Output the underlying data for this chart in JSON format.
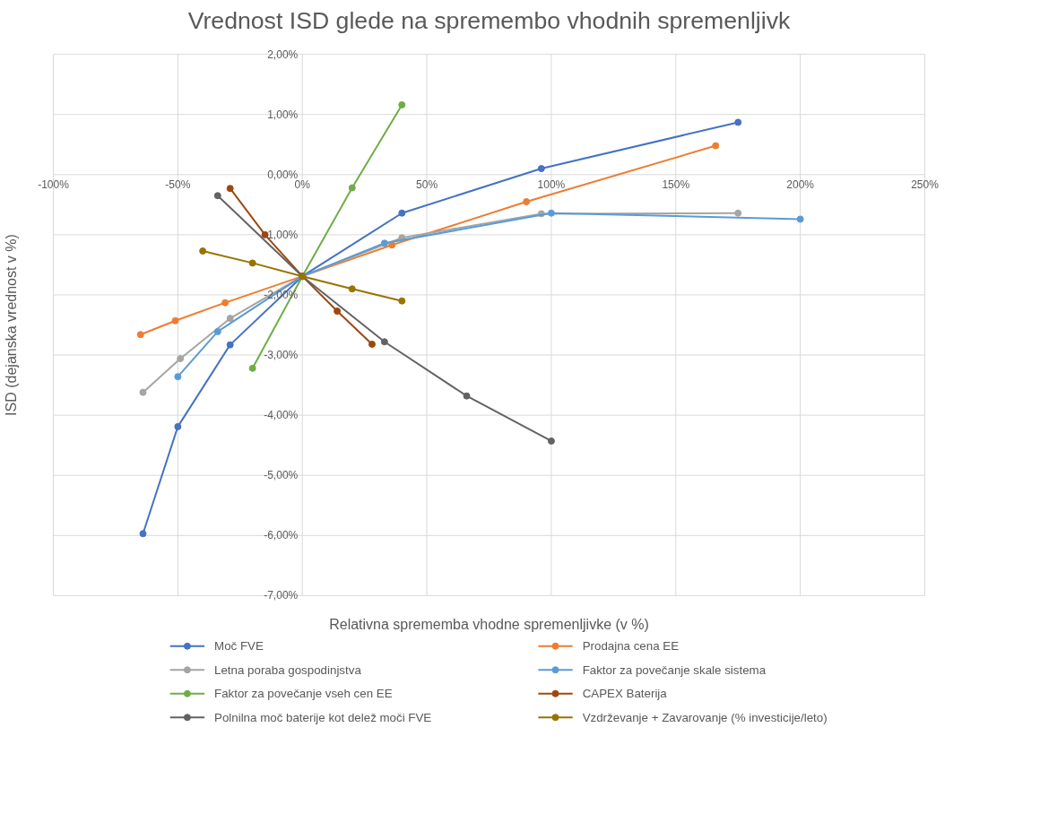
{
  "chart_data": {
    "type": "line",
    "title": "Vrednost ISD glede na spremembo vhodnih spremenljivk",
    "xlabel": "Relativna sprememba vhodne spremenljivke (v %)",
    "ylabel": "ISD (dejanska vrednost v %)",
    "xlim": [
      -100,
      250
    ],
    "ylim": [
      -7,
      2
    ],
    "xticks": [
      {
        "value": -100,
        "label": "-100%"
      },
      {
        "value": -50,
        "label": "-50%"
      },
      {
        "value": 0,
        "label": "0%"
      },
      {
        "value": 50,
        "label": "50%"
      },
      {
        "value": 100,
        "label": "100%"
      },
      {
        "value": 150,
        "label": "150%"
      },
      {
        "value": 200,
        "label": "200%"
      },
      {
        "value": 250,
        "label": "250%"
      }
    ],
    "yticks": [
      {
        "value": 2,
        "label": "2,00%"
      },
      {
        "value": 1,
        "label": "1,00%"
      },
      {
        "value": 0,
        "label": "0,00%"
      },
      {
        "value": -1,
        "label": "-1,00%"
      },
      {
        "value": -2,
        "label": "-2,00%"
      },
      {
        "value": -3,
        "label": "-3,00%"
      },
      {
        "value": -4,
        "label": "-4,00%"
      },
      {
        "value": -5,
        "label": "-5,00%"
      },
      {
        "value": -6,
        "label": "-6,00%"
      },
      {
        "value": -7,
        "label": "-7,00%"
      }
    ],
    "grid": true,
    "legend": "bottom",
    "marker": "circle",
    "line_style": "solid",
    "series": [
      {
        "name": "Moč FVE",
        "color": "#4472c4",
        "x": [
          -64,
          -50,
          -29,
          0,
          40,
          96,
          175
        ],
        "values": [
          -5.97,
          -4.19,
          -2.83,
          -1.69,
          -0.64,
          0.1,
          0.87
        ]
      },
      {
        "name": "Prodajna cena EE",
        "color": "#ed7d31",
        "x": [
          -65,
          -51,
          -31,
          0,
          36,
          90,
          166
        ],
        "values": [
          -2.66,
          -2.43,
          -2.13,
          -1.69,
          -1.17,
          -0.45,
          0.48
        ]
      },
      {
        "name": "Letna poraba gospodinjstva",
        "color": "#a5a5a5",
        "x": [
          -64,
          -49,
          -29,
          0,
          40,
          96,
          175
        ],
        "values": [
          -3.62,
          -3.06,
          -2.39,
          -1.69,
          -1.05,
          -0.65,
          -0.64
        ]
      },
      {
        "name": "Faktor za povečanje skale sistema",
        "color": "#5b9bd5",
        "x": [
          -50,
          -34,
          0,
          33,
          100,
          200
        ],
        "values": [
          -3.36,
          -2.61,
          -1.69,
          -1.14,
          -0.64,
          -0.74
        ]
      },
      {
        "name": "Faktor za povečanje vseh cen EE",
        "color": "#70ad47",
        "x": [
          -20,
          0,
          20,
          40
        ],
        "values": [
          -3.22,
          -1.69,
          -0.22,
          1.16
        ]
      },
      {
        "name": "CAPEX Baterija",
        "color": "#9e480e",
        "x": [
          -29,
          -15,
          0,
          14,
          28
        ],
        "values": [
          -0.23,
          -1.0,
          -1.69,
          -2.27,
          -2.82
        ]
      },
      {
        "name": "Polnilna moč baterije kot delež moči FVE",
        "color": "#636363",
        "x": [
          -34,
          0,
          33,
          66,
          100
        ],
        "values": [
          -0.35,
          -1.69,
          -2.78,
          -3.68,
          -4.43
        ]
      },
      {
        "name": "Vzdrževanje + Zavarovanje (% investicije/leto)",
        "color": "#997300",
        "x": [
          -40,
          -20,
          0,
          20,
          40
        ],
        "values": [
          -1.27,
          -1.47,
          -1.69,
          -1.9,
          -2.1
        ]
      }
    ]
  }
}
